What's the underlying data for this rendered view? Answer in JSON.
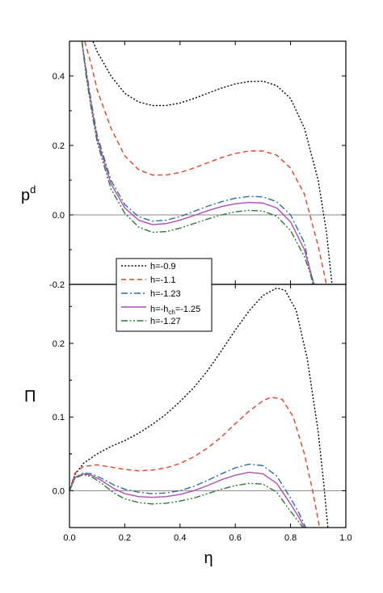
{
  "chart_data": [
    {
      "type": "line",
      "ylabel": "p",
      "ylabel_sup": "d",
      "xlim": [
        0.0,
        1.0
      ],
      "ylim": [
        -0.2,
        0.5
      ],
      "yticks": [
        {
          "value": 0.0,
          "label": "0.0"
        },
        {
          "value": 0.2,
          "label": "0.2"
        },
        {
          "value": 0.4,
          "label": "0.4"
        }
      ],
      "reference_line": 0.0,
      "grid": false,
      "legend_position": "lower-left",
      "series": [
        {
          "name": "h=-0.9",
          "color": "#000000",
          "dash": "dotted",
          "x": [
            0.04,
            0.06,
            0.1,
            0.15,
            0.2,
            0.25,
            0.3,
            0.35,
            0.4,
            0.45,
            0.5,
            0.55,
            0.6,
            0.65,
            0.7,
            0.75,
            0.8,
            0.85,
            0.9,
            0.93,
            0.95
          ],
          "y": [
            0.6,
            0.55,
            0.47,
            0.4,
            0.35,
            0.325,
            0.315,
            0.315,
            0.322,
            0.335,
            0.35,
            0.365,
            0.377,
            0.384,
            0.385,
            0.372,
            0.335,
            0.25,
            0.1,
            -0.05,
            -0.2
          ]
        },
        {
          "name": "h=-1.1",
          "color": "#e8402a",
          "dash": "dashed",
          "x": [
            0.055,
            0.08,
            0.1,
            0.15,
            0.2,
            0.25,
            0.3,
            0.35,
            0.4,
            0.45,
            0.5,
            0.55,
            0.6,
            0.65,
            0.7,
            0.75,
            0.8,
            0.85,
            0.9,
            0.93
          ],
          "y": [
            0.5,
            0.43,
            0.36,
            0.25,
            0.17,
            0.13,
            0.115,
            0.115,
            0.122,
            0.135,
            0.15,
            0.165,
            0.177,
            0.184,
            0.184,
            0.172,
            0.135,
            0.06,
            -0.09,
            -0.2
          ]
        },
        {
          "name": "h=-1.23",
          "color": "#2f6f9f",
          "dash": "dashdot",
          "x": [
            0.045,
            0.06,
            0.08,
            0.1,
            0.15,
            0.2,
            0.25,
            0.3,
            0.35,
            0.4,
            0.45,
            0.5,
            0.55,
            0.6,
            0.65,
            0.7,
            0.75,
            0.8,
            0.85,
            0.88
          ],
          "y": [
            0.5,
            0.42,
            0.32,
            0.23,
            0.1,
            0.03,
            -0.005,
            -0.018,
            -0.015,
            -0.005,
            0.01,
            0.025,
            0.038,
            0.048,
            0.053,
            0.052,
            0.038,
            0.0,
            -0.08,
            -0.2
          ]
        },
        {
          "name": "h=-h_ch=-1.25",
          "color": "#b24cb5",
          "dash": "solid",
          "x": [
            0.045,
            0.06,
            0.08,
            0.1,
            0.15,
            0.2,
            0.25,
            0.3,
            0.35,
            0.4,
            0.45,
            0.5,
            0.55,
            0.6,
            0.65,
            0.7,
            0.75,
            0.8,
            0.85,
            0.885
          ],
          "y": [
            0.5,
            0.41,
            0.31,
            0.22,
            0.09,
            0.02,
            -0.015,
            -0.028,
            -0.025,
            -0.015,
            -0.002,
            0.012,
            0.024,
            0.032,
            0.036,
            0.034,
            0.02,
            -0.02,
            -0.1,
            -0.2
          ]
        },
        {
          "name": "h=-1.27",
          "color": "#2f7a35",
          "dash": "dashdotdot",
          "x": [
            0.045,
            0.06,
            0.08,
            0.1,
            0.15,
            0.2,
            0.25,
            0.3,
            0.35,
            0.4,
            0.45,
            0.5,
            0.55,
            0.6,
            0.65,
            0.7,
            0.75,
            0.8,
            0.85,
            0.885
          ],
          "y": [
            0.5,
            0.4,
            0.3,
            0.21,
            0.075,
            0.005,
            -0.035,
            -0.05,
            -0.048,
            -0.038,
            -0.025,
            -0.012,
            0.0,
            0.009,
            0.013,
            0.011,
            -0.004,
            -0.045,
            -0.12,
            -0.2
          ]
        }
      ]
    },
    {
      "type": "line",
      "ylabel": "Π",
      "xlabel": "η",
      "xlim": [
        0.0,
        1.0
      ],
      "ylim": [
        -0.05,
        0.28
      ],
      "xticks": [
        {
          "value": 0.0,
          "label": "0.0"
        },
        {
          "value": 0.2,
          "label": "0.2"
        },
        {
          "value": 0.4,
          "label": "0.4"
        },
        {
          "value": 0.6,
          "label": "0.6"
        },
        {
          "value": 0.8,
          "label": "0.8"
        },
        {
          "value": 1.0,
          "label": "1.0"
        }
      ],
      "yticks": [
        {
          "value": 0.0,
          "label": "0.0"
        },
        {
          "value": 0.1,
          "label": "0.1"
        },
        {
          "value": 0.2,
          "label": "0.2"
        }
      ],
      "reference_line": 0.0,
      "grid": false,
      "series": [
        {
          "name": "h=-0.9",
          "color": "#000000",
          "dash": "dotted",
          "x": [
            0.0,
            0.02,
            0.05,
            0.1,
            0.15,
            0.2,
            0.25,
            0.3,
            0.35,
            0.4,
            0.45,
            0.5,
            0.55,
            0.6,
            0.65,
            0.7,
            0.75,
            0.78,
            0.82,
            0.86,
            0.9,
            0.92,
            0.935
          ],
          "y": [
            0.0,
            0.022,
            0.037,
            0.05,
            0.06,
            0.068,
            0.078,
            0.09,
            0.104,
            0.121,
            0.14,
            0.163,
            0.19,
            0.218,
            0.244,
            0.265,
            0.275,
            0.272,
            0.245,
            0.18,
            0.08,
            0.01,
            -0.05
          ]
        },
        {
          "name": "h=-1.1",
          "color": "#e8402a",
          "dash": "dashed",
          "x": [
            0.0,
            0.02,
            0.05,
            0.1,
            0.15,
            0.2,
            0.25,
            0.3,
            0.35,
            0.4,
            0.45,
            0.5,
            0.55,
            0.6,
            0.65,
            0.7,
            0.73,
            0.77,
            0.81,
            0.85,
            0.88,
            0.905
          ],
          "y": [
            0.0,
            0.024,
            0.033,
            0.035,
            0.032,
            0.029,
            0.027,
            0.028,
            0.031,
            0.037,
            0.046,
            0.058,
            0.073,
            0.091,
            0.108,
            0.122,
            0.127,
            0.124,
            0.1,
            0.05,
            0.0,
            -0.05
          ]
        },
        {
          "name": "h=-1.23",
          "color": "#2f6f9f",
          "dash": "dashdot",
          "x": [
            0.0,
            0.02,
            0.05,
            0.08,
            0.12,
            0.16,
            0.2,
            0.25,
            0.3,
            0.35,
            0.4,
            0.45,
            0.5,
            0.55,
            0.6,
            0.65,
            0.7,
            0.75,
            0.8,
            0.83,
            0.855
          ],
          "y": [
            0.0,
            0.018,
            0.024,
            0.023,
            0.016,
            0.008,
            0.002,
            -0.002,
            -0.004,
            -0.003,
            0.0,
            0.006,
            0.014,
            0.023,
            0.031,
            0.036,
            0.034,
            0.02,
            -0.01,
            -0.03,
            -0.05
          ]
        },
        {
          "name": "h=-h_ch=-1.25",
          "color": "#b24cb5",
          "dash": "solid",
          "x": [
            0.0,
            0.02,
            0.05,
            0.08,
            0.12,
            0.16,
            0.2,
            0.25,
            0.3,
            0.35,
            0.4,
            0.45,
            0.5,
            0.55,
            0.6,
            0.65,
            0.7,
            0.75,
            0.8,
            0.83,
            0.85
          ],
          "y": [
            0.0,
            0.018,
            0.023,
            0.021,
            0.013,
            0.003,
            -0.004,
            -0.008,
            -0.009,
            -0.008,
            -0.005,
            0.0,
            0.007,
            0.015,
            0.021,
            0.025,
            0.023,
            0.01,
            -0.018,
            -0.036,
            -0.05
          ]
        },
        {
          "name": "h=-1.27",
          "color": "#2f7a35",
          "dash": "dashdotdot",
          "x": [
            0.0,
            0.02,
            0.05,
            0.08,
            0.12,
            0.16,
            0.2,
            0.25,
            0.3,
            0.35,
            0.4,
            0.45,
            0.5,
            0.55,
            0.6,
            0.65,
            0.7,
            0.75,
            0.8,
            0.825,
            0.845
          ],
          "y": [
            0.0,
            0.017,
            0.022,
            0.019,
            0.009,
            -0.003,
            -0.011,
            -0.016,
            -0.018,
            -0.017,
            -0.014,
            -0.01,
            -0.004,
            0.002,
            0.007,
            0.01,
            0.009,
            -0.002,
            -0.028,
            -0.04,
            -0.05
          ]
        }
      ]
    }
  ],
  "legend": {
    "entries": [
      {
        "text": "h=-0.9"
      },
      {
        "text": "h=-1.1"
      },
      {
        "text": "h=-1.23"
      },
      {
        "pre": "h=-h",
        "sub": "ch",
        "post": "=-1.25"
      },
      {
        "text": "h=-1.27"
      }
    ]
  },
  "overlap_label": "-0.2"
}
